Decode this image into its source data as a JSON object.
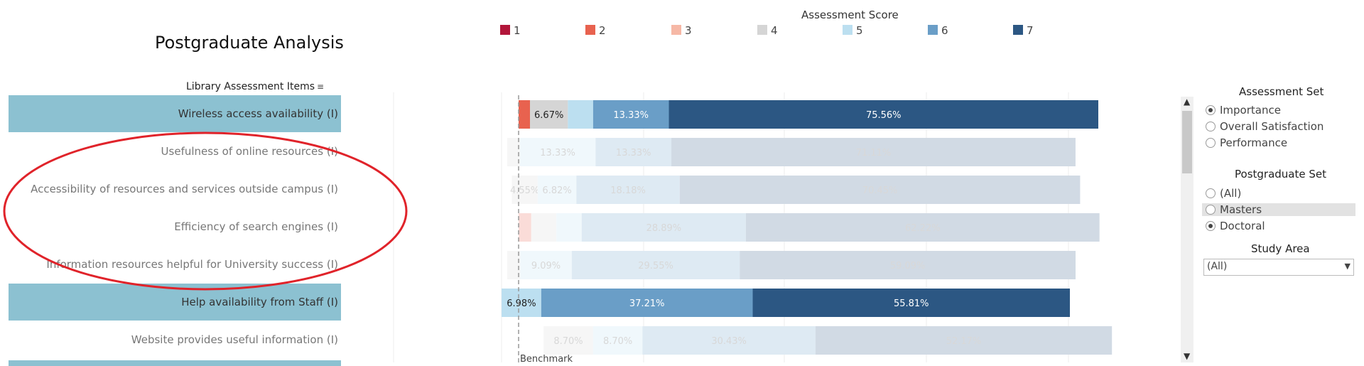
{
  "page": {
    "title": "Postgraduate Analysis"
  },
  "legend": {
    "title": "Assessment Score",
    "items": [
      {
        "label": "1",
        "color": "#b2163a"
      },
      {
        "label": "2",
        "color": "#e8624f"
      },
      {
        "label": "3",
        "color": "#f6b8a6"
      },
      {
        "label": "4",
        "color": "#d5d5d5"
      },
      {
        "label": "5",
        "color": "#bcdff0"
      },
      {
        "label": "6",
        "color": "#6a9ec7"
      },
      {
        "label": "7",
        "color": "#2c5783"
      }
    ]
  },
  "rows_header": {
    "label": "Library Assessment Items",
    "sort_icon": "sort-descending-icon"
  },
  "rows": [
    {
      "label": "Wireless access availability (I)",
      "highlighted": true
    },
    {
      "label": "Usefulness of online resources (I)",
      "highlighted": false
    },
    {
      "label": "Accessibility of resources and services outside campus (I)",
      "highlighted": false
    },
    {
      "label": "Efficiency of search engines (I)",
      "highlighted": false
    },
    {
      "label": "Information resources helpful for University success (I)",
      "highlighted": false
    },
    {
      "label": "Help availability from Staff (I)",
      "highlighted": true
    },
    {
      "label": "Website provides useful information (I)",
      "highlighted": false
    }
  ],
  "chart_data": {
    "type": "bar",
    "stacked": true,
    "orientation": "horizontal",
    "categories": [
      "Wireless access availability (I)",
      "Usefulness of online resources (I)",
      "Accessibility of resources and services outside campus (I)",
      "Efficiency of search engines (I)",
      "Information resources helpful for University success (I)",
      "Help availability from Staff (I)",
      "Website provides useful information (I)"
    ],
    "unit": "%",
    "reference_line": {
      "label": "Benchmark"
    },
    "highlighted": [
      true,
      false,
      false,
      false,
      false,
      true,
      false
    ],
    "segments": [
      [
        {
          "score": "2",
          "value": 2.0,
          "label": ""
        },
        {
          "score": "4",
          "value": 6.67,
          "label": "6.67%"
        },
        {
          "score": "5",
          "value": 4.44,
          "label": ""
        },
        {
          "score": "6",
          "value": 13.33,
          "label": "13.33%"
        },
        {
          "score": "7",
          "value": 75.56,
          "label": "75.56%"
        }
      ],
      [
        {
          "score": "4",
          "value": 2.22,
          "label": ""
        },
        {
          "score": "5",
          "value": 13.33,
          "label": "13.33%"
        },
        {
          "score": "6",
          "value": 13.33,
          "label": "13.33%"
        },
        {
          "score": "7",
          "value": 71.11,
          "label": "71.11%"
        }
      ],
      [
        {
          "score": "4",
          "value": 4.55,
          "label": "4.55%"
        },
        {
          "score": "5",
          "value": 6.82,
          "label": "6.82%"
        },
        {
          "score": "6",
          "value": 18.18,
          "label": "18.18%"
        },
        {
          "score": "7",
          "value": 70.45,
          "label": "70.45%"
        }
      ],
      [
        {
          "score": "2",
          "value": 2.22,
          "label": ""
        },
        {
          "score": "4",
          "value": 4.44,
          "label": ""
        },
        {
          "score": "5",
          "value": 4.44,
          "label": ""
        },
        {
          "score": "6",
          "value": 28.89,
          "label": "28.89%"
        },
        {
          "score": "7",
          "value": 62.22,
          "label": "62.22%"
        }
      ],
      [
        {
          "score": "4",
          "value": 2.27,
          "label": ""
        },
        {
          "score": "5",
          "value": 9.09,
          "label": "9.09%"
        },
        {
          "score": "6",
          "value": 29.55,
          "label": "29.55%"
        },
        {
          "score": "7",
          "value": 59.09,
          "label": "59.09%"
        }
      ],
      [
        {
          "score": "5",
          "value": 6.98,
          "label": "6.98%"
        },
        {
          "score": "6",
          "value": 37.21,
          "label": "37.21%"
        },
        {
          "score": "7",
          "value": 55.81,
          "label": "55.81%"
        }
      ],
      [
        {
          "score": "4",
          "value": 8.7,
          "label": "8.70%"
        },
        {
          "score": "5",
          "value": 8.7,
          "label": "8.70%"
        },
        {
          "score": "6",
          "value": 30.43,
          "label": "30.43%"
        },
        {
          "score": "7",
          "value": 52.17,
          "label": "52.17%"
        }
      ]
    ],
    "row_offsets": [
      0,
      -2.0,
      -1.2,
      0,
      -2.0,
      -3.0,
      4.4
    ]
  },
  "filters": {
    "assessment_set": {
      "title": "Assessment Set",
      "options": [
        {
          "label": "Importance",
          "selected": true
        },
        {
          "label": "Overall Satisfaction",
          "selected": false
        },
        {
          "label": "Performance",
          "selected": false
        }
      ]
    },
    "postgraduate_set": {
      "title": "Postgraduate Set",
      "options": [
        {
          "label": "(All)",
          "selected": false
        },
        {
          "label": "Masters",
          "selected": false,
          "hovered": true
        },
        {
          "label": "Doctoral",
          "selected": true
        }
      ]
    },
    "study_area": {
      "title": "Study Area",
      "value": "(All)"
    }
  },
  "annotation": {
    "shape": "red-ellipse",
    "color": "#e0232a"
  }
}
